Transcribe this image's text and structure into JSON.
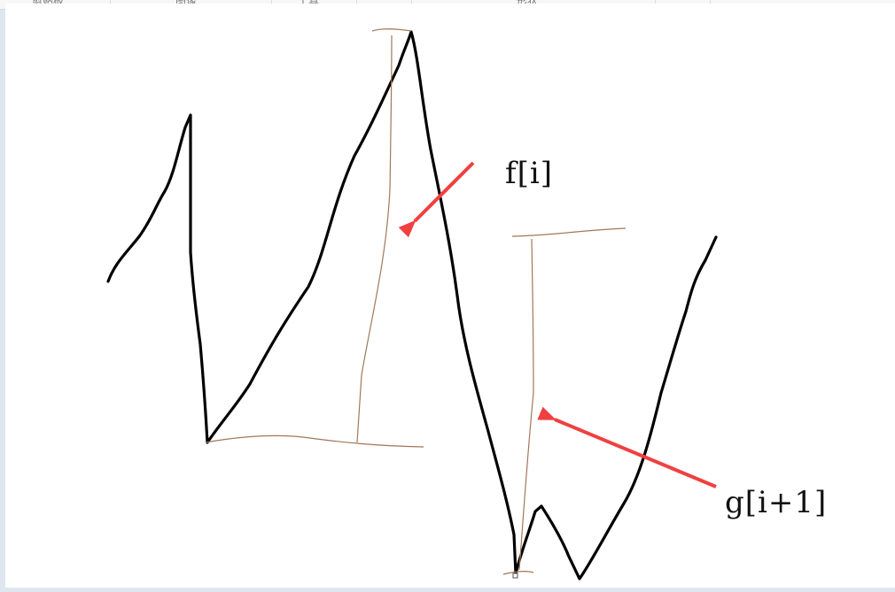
{
  "ribbon": {
    "groups": [
      "剪贴板",
      "图像",
      "工具",
      "",
      "形状",
      "",
      ""
    ]
  },
  "annotations": {
    "f_label": "f[i]",
    "g_label": "g[i+1]"
  },
  "colors": {
    "stroke": "#000000",
    "measure": "#a0785a",
    "arrow": "#f04040"
  }
}
